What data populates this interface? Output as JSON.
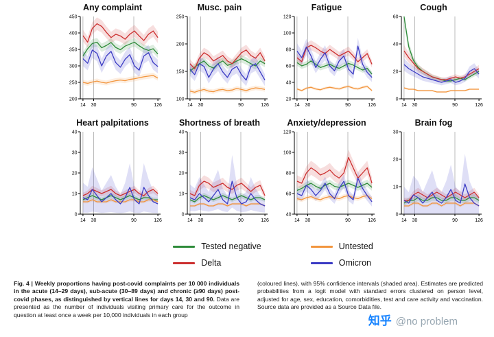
{
  "colors": {
    "tested_negative": "#2e8b3a",
    "delta": "#cc2f2f",
    "untested": "#f2953d",
    "omicron": "#3b3bc4",
    "gridline": "#aaaaaa",
    "axis": "#000000"
  },
  "legend": {
    "items": [
      {
        "label": "Tested negative",
        "color": "#2e8b3a"
      },
      {
        "label": "Delta",
        "color": "#cc2f2f"
      },
      {
        "label": "Untested",
        "color": "#f2953d"
      },
      {
        "label": "Omicron",
        "color": "#3b3bc4"
      }
    ]
  },
  "caption": {
    "left_bold": "Fig. 4 | Weekly proportions having post-covid complaints per 10 000 individuals in the acute (14–29 days), sub-acute (30–89 days) and chronic (≥90 days) post-covid phases, as distinguished by vertical lines for days 14, 30 and 90.",
    "left_rest": " Data are presented as the number of individuals visiting primary care for the outcome in question at least once a week per 10,000 individuals in each group",
    "right": "(coloured lines), with 95% confidence intervals (shaded area). Estimates are predicted probabilities from a logit model with standard errors clustered on person level, adjusted for age, sex, education, comorbidities, test and care activity and vaccination. Source data are provided as a Source Data file."
  },
  "watermark": {
    "logo": "知乎",
    "handle": "@no problem"
  },
  "x_weeks": [
    14,
    21,
    28,
    35,
    42,
    49,
    56,
    63,
    70,
    77,
    84,
    91,
    98,
    105,
    112,
    119,
    126
  ],
  "chart_data": [
    {
      "type": "line",
      "title": "Any complaint",
      "ylim": [
        200,
        450
      ],
      "yticks": [
        200,
        250,
        300,
        350,
        400,
        450
      ],
      "xticks": [
        14,
        30,
        90,
        126
      ],
      "vlines": [
        14,
        30,
        90
      ],
      "series": [
        {
          "name": "Tested negative",
          "key": "tested_negative",
          "ci": 0.035,
          "values": [
            330,
            352,
            368,
            372,
            355,
            362,
            371,
            356,
            349,
            360,
            366,
            372,
            361,
            352,
            347,
            352,
            336
          ]
        },
        {
          "name": "Delta",
          "key": "delta",
          "ci": 0.045,
          "values": [
            392,
            372,
            414,
            428,
            420,
            402,
            386,
            396,
            391,
            381,
            396,
            406,
            391,
            377,
            396,
            406,
            386
          ]
        },
        {
          "name": "Untested",
          "key": "untested",
          "ci": 0.03,
          "values": [
            250,
            247,
            251,
            254,
            250,
            248,
            252,
            255,
            257,
            255,
            259,
            261,
            264,
            267,
            269,
            271,
            263
          ]
        },
        {
          "name": "Omicron",
          "key": "omicron",
          "ci": 0.07,
          "values": [
            322,
            308,
            348,
            338,
            300,
            330,
            344,
            310,
            296,
            320,
            334,
            300,
            287,
            330,
            340,
            310,
            298
          ]
        }
      ]
    },
    {
      "type": "line",
      "title": "Musc. pain",
      "ylim": [
        100,
        250
      ],
      "yticks": [
        100,
        150,
        200,
        250
      ],
      "xticks": [
        14,
        30,
        90,
        126
      ],
      "vlines": [
        14,
        30,
        90
      ],
      "series": [
        {
          "name": "Tested negative",
          "key": "tested_negative",
          "ci": 0.04,
          "values": [
            150,
            158,
            164,
            169,
            160,
            156,
            164,
            169,
            161,
            164,
            169,
            173,
            169,
            164,
            160,
            169,
            164
          ]
        },
        {
          "name": "Delta",
          "key": "delta",
          "ci": 0.05,
          "values": [
            164,
            155,
            174,
            184,
            179,
            169,
            174,
            179,
            169,
            164,
            174,
            184,
            189,
            179,
            174,
            184,
            169
          ]
        },
        {
          "name": "Untested",
          "key": "untested",
          "ci": 0.035,
          "values": [
            114,
            112,
            115,
            117,
            114,
            113,
            116,
            117,
            115,
            116,
            119,
            117,
            115,
            118,
            120,
            119,
            117
          ]
        },
        {
          "name": "Omicron",
          "key": "omicron",
          "ci": 0.08,
          "values": [
            154,
            144,
            164,
            159,
            139,
            154,
            164,
            149,
            139,
            154,
            159,
            144,
            134,
            159,
            164,
            149,
            134
          ]
        }
      ]
    },
    {
      "type": "line",
      "title": "Fatigue",
      "ylim": [
        20,
        120
      ],
      "yticks": [
        20,
        40,
        60,
        80,
        100,
        120
      ],
      "xticks": [
        14,
        30,
        90,
        126
      ],
      "vlines": [
        14,
        30,
        90
      ],
      "series": [
        {
          "name": "Tested negative",
          "key": "tested_negative",
          "ci": 0.06,
          "values": [
            64,
            60,
            62,
            66,
            62,
            58,
            60,
            62,
            59,
            57,
            60,
            63,
            61,
            58,
            55,
            57,
            50
          ]
        },
        {
          "name": "Delta",
          "key": "delta",
          "ci": 0.07,
          "values": [
            70,
            65,
            82,
            85,
            82,
            78,
            75,
            80,
            76,
            72,
            75,
            78,
            72,
            65,
            70,
            75,
            62
          ]
        },
        {
          "name": "Untested",
          "key": "untested",
          "ci": 0.05,
          "values": [
            32,
            30,
            33,
            34,
            32,
            31,
            33,
            34,
            33,
            32,
            34,
            35,
            33,
            32,
            34,
            35,
            30
          ]
        },
        {
          "name": "Omicron",
          "key": "omicron",
          "ci": 0.12,
          "values": [
            78,
            70,
            83,
            72,
            58,
            68,
            76,
            60,
            54,
            66,
            72,
            56,
            50,
            84,
            62,
            52,
            46
          ]
        }
      ]
    },
    {
      "type": "line",
      "title": "Cough",
      "ylim": [
        0,
        60
      ],
      "yticks": [
        0,
        20,
        40,
        60
      ],
      "xticks": [
        14,
        30,
        90,
        126
      ],
      "vlines": [
        14,
        30,
        90
      ],
      "series": [
        {
          "name": "Tested negative",
          "key": "tested_negative",
          "ci": 0.1,
          "values": [
            60,
            38,
            28,
            23,
            20,
            18,
            16,
            15,
            14,
            13,
            13,
            14,
            15,
            14,
            16,
            18,
            20
          ]
        },
        {
          "name": "Delta",
          "key": "delta",
          "ci": 0.12,
          "values": [
            35,
            30,
            26,
            22,
            20,
            18,
            16,
            15,
            14,
            14,
            15,
            16,
            15,
            16,
            18,
            20,
            22
          ]
        },
        {
          "name": "Untested",
          "key": "untested",
          "ci": 0.1,
          "values": [
            8,
            7,
            7,
            6,
            6,
            6,
            6,
            5,
            5,
            5,
            6,
            6,
            6,
            6,
            7,
            7,
            7
          ]
        },
        {
          "name": "Omicron",
          "key": "omicron",
          "ci": 0.18,
          "values": [
            25,
            22,
            20,
            18,
            16,
            15,
            14,
            13,
            12,
            13,
            14,
            12,
            13,
            15,
            20,
            22,
            18
          ]
        }
      ]
    },
    {
      "type": "line",
      "title": "Heart palpitations",
      "ylim": [
        0,
        40
      ],
      "yticks": [
        0,
        10,
        20,
        30,
        40
      ],
      "xticks": [
        14,
        30,
        90,
        126
      ],
      "vlines": [
        14,
        30,
        90
      ],
      "series": [
        {
          "name": "Tested negative",
          "key": "tested_negative",
          "ci": 0.15,
          "values": [
            7,
            8,
            9,
            8,
            7,
            8,
            9,
            8,
            7,
            8,
            9,
            8,
            7,
            8,
            8,
            7,
            7
          ]
        },
        {
          "name": "Delta",
          "key": "delta",
          "ci": 0.15,
          "values": [
            9,
            10,
            12,
            11,
            10,
            11,
            12,
            10,
            9,
            10,
            11,
            12,
            10,
            9,
            11,
            12,
            10
          ]
        },
        {
          "name": "Untested",
          "key": "untested",
          "ci": 0.12,
          "values": [
            6,
            6,
            7,
            6,
            6,
            6,
            7,
            6,
            6,
            6,
            7,
            7,
            6,
            6,
            7,
            7,
            6
          ]
        },
        {
          "name": "Omicron",
          "key": "omicron",
          "ci": 0.9,
          "values": [
            8,
            7,
            12,
            9,
            6,
            8,
            10,
            7,
            5,
            8,
            13,
            7,
            5,
            13,
            9,
            6,
            5
          ]
        }
      ]
    },
    {
      "type": "line",
      "title": "Shortness of breath",
      "ylim": [
        0,
        40
      ],
      "yticks": [
        0,
        10,
        20,
        30,
        40
      ],
      "xticks": [
        14,
        30,
        90,
        126
      ],
      "vlines": [
        14,
        30,
        90
      ],
      "series": [
        {
          "name": "Tested negative",
          "key": "tested_negative",
          "ci": 0.15,
          "values": [
            7,
            6,
            8,
            9,
            8,
            7,
            8,
            9,
            8,
            7,
            8,
            9,
            8,
            7,
            8,
            8,
            7
          ]
        },
        {
          "name": "Delta",
          "key": "delta",
          "ci": 0.18,
          "values": [
            10,
            9,
            14,
            16,
            15,
            13,
            14,
            15,
            13,
            12,
            14,
            15,
            13,
            11,
            13,
            14,
            9
          ]
        },
        {
          "name": "Untested",
          "key": "untested",
          "ci": 0.12,
          "values": [
            4,
            4,
            5,
            5,
            4,
            4,
            5,
            5,
            4,
            5,
            5,
            5,
            4,
            5,
            5,
            5,
            4
          ]
        },
        {
          "name": "Omicron",
          "key": "omicron",
          "ci": 0.8,
          "values": [
            8,
            7,
            10,
            8,
            6,
            9,
            12,
            7,
            5,
            16,
            8,
            5,
            6,
            10,
            7,
            5,
            4
          ]
        }
      ]
    },
    {
      "type": "line",
      "title": "Anxiety/depression",
      "ylim": [
        40,
        120
      ],
      "yticks": [
        40,
        60,
        80,
        100,
        120
      ],
      "xticks": [
        14,
        30,
        90,
        126
      ],
      "vlines": [
        14,
        30,
        90
      ],
      "series": [
        {
          "name": "Tested negative",
          "key": "tested_negative",
          "ci": 0.05,
          "values": [
            63,
            65,
            68,
            70,
            67,
            65,
            68,
            70,
            67,
            66,
            68,
            70,
            68,
            66,
            68,
            70,
            66
          ]
        },
        {
          "name": "Delta",
          "key": "delta",
          "ci": 0.08,
          "values": [
            72,
            70,
            80,
            85,
            82,
            78,
            80,
            83,
            78,
            75,
            80,
            95,
            85,
            75,
            80,
            85,
            70
          ]
        },
        {
          "name": "Untested",
          "key": "untested",
          "ci": 0.04,
          "values": [
            55,
            54,
            56,
            57,
            55,
            54,
            56,
            57,
            56,
            55,
            57,
            58,
            56,
            55,
            57,
            58,
            55
          ]
        },
        {
          "name": "Omicron",
          "key": "omicron",
          "ci": 0.09,
          "values": [
            60,
            58,
            68,
            64,
            58,
            63,
            70,
            60,
            55,
            65,
            72,
            58,
            54,
            75,
            65,
            58,
            52
          ]
        }
      ]
    },
    {
      "type": "line",
      "title": "Brain fog",
      "ylim": [
        0,
        30
      ],
      "yticks": [
        0,
        10,
        20,
        30
      ],
      "xticks": [
        14,
        30,
        90,
        126
      ],
      "vlines": [
        14,
        30,
        90
      ],
      "series": [
        {
          "name": "Tested negative",
          "key": "tested_negative",
          "ci": 0.2,
          "values": [
            4,
            5,
            5,
            6,
            5,
            5,
            6,
            6,
            5,
            5,
            6,
            6,
            5,
            5,
            6,
            6,
            5
          ]
        },
        {
          "name": "Delta",
          "key": "delta",
          "ci": 0.2,
          "values": [
            5,
            5,
            7,
            8,
            7,
            6,
            7,
            8,
            7,
            6,
            7,
            8,
            7,
            6,
            7,
            8,
            6
          ]
        },
        {
          "name": "Untested",
          "key": "untested",
          "ci": 0.15,
          "values": [
            3,
            3,
            4,
            4,
            3,
            3,
            4,
            4,
            3,
            4,
            4,
            4,
            3,
            4,
            4,
            4,
            3
          ]
        },
        {
          "name": "Omicron",
          "key": "omicron",
          "ci": 1.0,
          "values": [
            5,
            4,
            7,
            6,
            4,
            6,
            8,
            5,
            4,
            6,
            9,
            5,
            4,
            11,
            6,
            4,
            3
          ]
        }
      ]
    }
  ]
}
